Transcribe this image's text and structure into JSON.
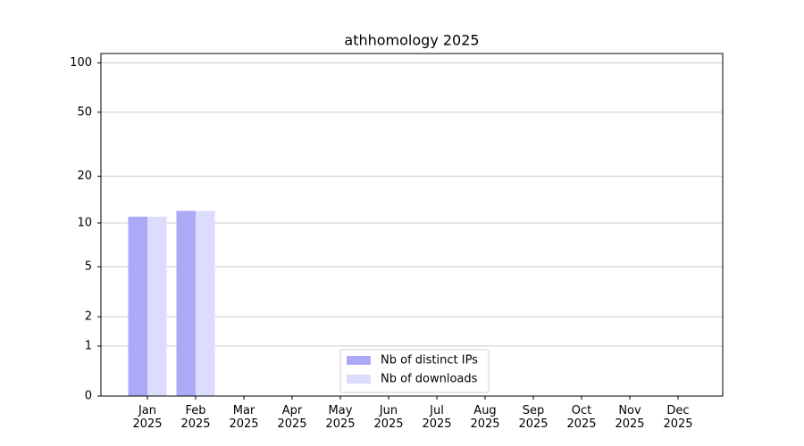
{
  "chart_data": {
    "type": "bar",
    "title": "athhomology 2025",
    "categories": [
      "Jan\n2025",
      "Feb\n2025",
      "Mar\n2025",
      "Apr\n2025",
      "May\n2025",
      "Jun\n2025",
      "Jul\n2025",
      "Aug\n2025",
      "Sep\n2025",
      "Oct\n2025",
      "Nov\n2025",
      "Dec\n2025"
    ],
    "series": [
      {
        "name": "Nb of distinct IPs",
        "color": "#aaaaf8",
        "values": [
          11,
          12,
          0,
          0,
          0,
          0,
          0,
          0,
          0,
          0,
          0,
          0
        ]
      },
      {
        "name": "Nb of downloads",
        "color": "#dcdcfc",
        "values": [
          11,
          12,
          0,
          0,
          0,
          0,
          0,
          0,
          0,
          0,
          0,
          0
        ]
      }
    ],
    "yscale": "log1p",
    "ylim": [
      0,
      114
    ],
    "yticks": [
      0,
      1,
      2,
      5,
      10,
      20,
      50,
      100
    ],
    "grid": true,
    "legend": "lower center"
  }
}
